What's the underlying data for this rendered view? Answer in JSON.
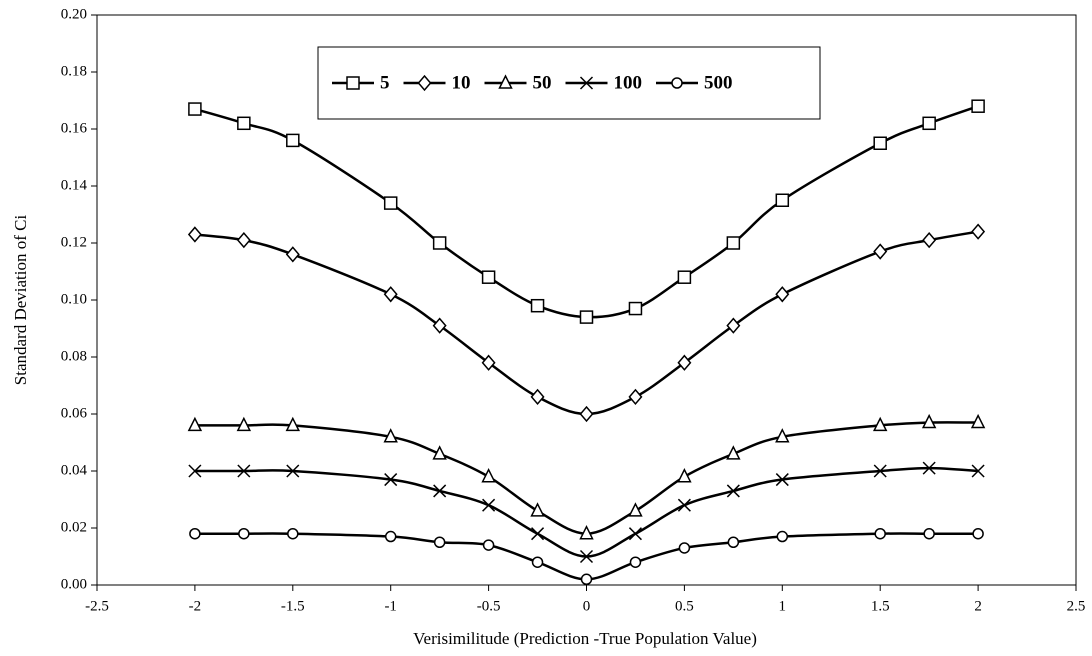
{
  "chart_data": {
    "type": "line",
    "x_label": "Verisimilitude (Prediction -True Population Value)",
    "y_label": "Standard Deviation of Ci",
    "x": [
      -2,
      -1.75,
      -1.5,
      -1,
      -0.75,
      -0.5,
      -0.25,
      0,
      0.25,
      0.5,
      0.75,
      1,
      1.5,
      1.75,
      2
    ],
    "series": [
      {
        "name": "5",
        "color": "#000000",
        "marker": "square",
        "values": [
          0.167,
          0.162,
          0.156,
          0.134,
          0.12,
          0.108,
          0.098,
          0.094,
          0.097,
          0.108,
          0.12,
          0.135,
          0.155,
          0.162,
          0.168
        ]
      },
      {
        "name": "10",
        "color": "#000000",
        "marker": "diamond",
        "values": [
          0.123,
          0.121,
          0.116,
          0.102,
          0.091,
          0.078,
          0.066,
          0.06,
          0.066,
          0.078,
          0.091,
          0.102,
          0.117,
          0.121,
          0.124
        ]
      },
      {
        "name": "50",
        "color": "#000000",
        "marker": "triangle",
        "values": [
          0.056,
          0.056,
          0.056,
          0.052,
          0.046,
          0.038,
          0.026,
          0.018,
          0.026,
          0.038,
          0.046,
          0.052,
          0.056,
          0.057,
          0.057
        ]
      },
      {
        "name": "100",
        "color": "#000000",
        "marker": "x",
        "values": [
          0.04,
          0.04,
          0.04,
          0.037,
          0.033,
          0.028,
          0.018,
          0.01,
          0.018,
          0.028,
          0.033,
          0.037,
          0.04,
          0.041,
          0.04
        ]
      },
      {
        "name": "500",
        "color": "#000000",
        "marker": "circle",
        "values": [
          0.018,
          0.018,
          0.018,
          0.017,
          0.015,
          0.014,
          0.008,
          0.002,
          0.008,
          0.013,
          0.015,
          0.017,
          0.018,
          0.018,
          0.018
        ]
      }
    ],
    "xlim": [
      -2.5,
      2.5
    ],
    "xticks": [
      -2.5,
      -2,
      -1.5,
      -1,
      -0.5,
      0,
      0.5,
      1,
      1.5,
      2,
      2.5
    ],
    "ylim": [
      0,
      0.2
    ],
    "yticks": [
      {
        "value": 0,
        "label": "0.00"
      },
      {
        "value": 0.02,
        "label": "0.02"
      },
      {
        "value": 0.04,
        "label": "0.04"
      },
      {
        "value": 0.06,
        "label": "0.06"
      },
      {
        "value": 0.08,
        "label": "0.08"
      },
      {
        "value": 0.1,
        "label": "0.10"
      },
      {
        "value": 0.12,
        "label": "0.12"
      },
      {
        "value": 0.14,
        "label": "0.14"
      },
      {
        "value": 0.16,
        "label": "0.16"
      },
      {
        "value": 0.18,
        "label": "0.18"
      },
      {
        "value": 0.2,
        "label": "0.20"
      }
    ],
    "grid": false,
    "legend": "top"
  }
}
